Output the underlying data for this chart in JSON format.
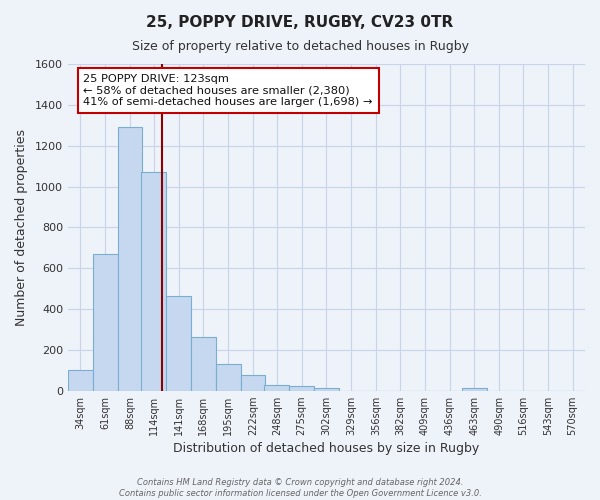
{
  "title": "25, POPPY DRIVE, RUGBY, CV23 0TR",
  "subtitle": "Size of property relative to detached houses in Rugby",
  "xlabel": "Distribution of detached houses by size in Rugby",
  "ylabel": "Number of detached properties",
  "bar_values": [
    100,
    670,
    1290,
    1070,
    465,
    265,
    130,
    75,
    30,
    25,
    15,
    0,
    0,
    0,
    0,
    0,
    15,
    0,
    0,
    0,
    0
  ],
  "tick_labels": [
    "34sqm",
    "61sqm",
    "88sqm",
    "114sqm",
    "141sqm",
    "168sqm",
    "195sqm",
    "222sqm",
    "248sqm",
    "275sqm",
    "302sqm",
    "329sqm",
    "356sqm",
    "382sqm",
    "409sqm",
    "436sqm",
    "463sqm",
    "490sqm",
    "516sqm",
    "543sqm",
    "570sqm"
  ],
  "tick_positions": [
    34,
    61,
    88,
    114,
    141,
    168,
    195,
    222,
    248,
    275,
    302,
    329,
    356,
    382,
    409,
    436,
    463,
    490,
    516,
    543,
    570
  ],
  "bar_color": "#c5d8f0",
  "bar_edge_color": "#7aadce",
  "vline_x": 123,
  "vline_color": "#8b0000",
  "ylim": [
    0,
    1600
  ],
  "yticks": [
    0,
    200,
    400,
    600,
    800,
    1000,
    1200,
    1400,
    1600
  ],
  "annotation_title": "25 POPPY DRIVE: 123sqm",
  "annotation_line1": "← 58% of detached houses are smaller (2,380)",
  "annotation_line2": "41% of semi-detached houses are larger (1,698) →",
  "annotation_box_color": "#ffffff",
  "annotation_box_edge": "#c00000",
  "footer1": "Contains HM Land Registry data © Crown copyright and database right 2024.",
  "footer2": "Contains public sector information licensed under the Open Government Licence v3.0.",
  "background_color": "#eef2f9",
  "grid_color": "#d8e0ee"
}
